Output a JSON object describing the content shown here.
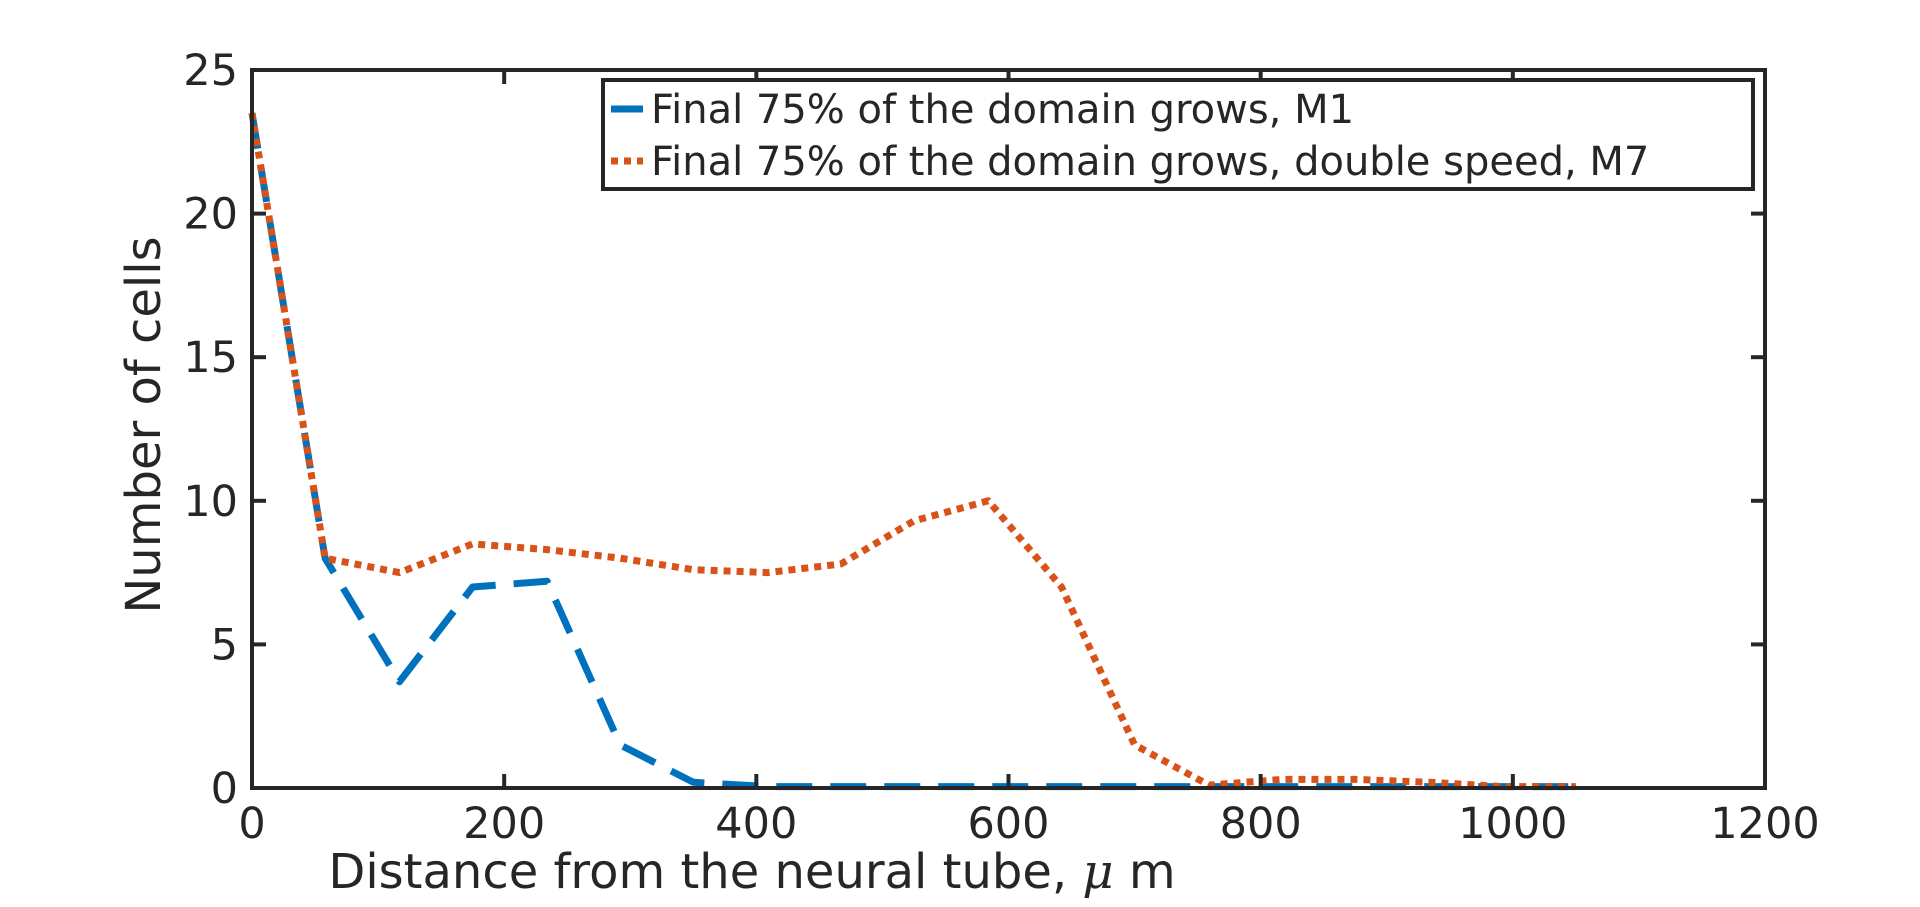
{
  "chart_data": {
    "type": "line",
    "title": "",
    "xlabel_prefix": "Distance from the neural tube, ",
    "xlabel_mu": "μ",
    "xlabel_suffix": " m",
    "ylabel": "Number of cells",
    "xlim": [
      0,
      1200
    ],
    "ylim": [
      0,
      25
    ],
    "xticks": [
      0,
      200,
      400,
      600,
      800,
      1000,
      1200
    ],
    "yticks": [
      0,
      5,
      10,
      15,
      20,
      25
    ],
    "grid": false,
    "legend_position": "top-right",
    "series": [
      {
        "name": "Final 75% of the domain grows, M1",
        "color": "#0072BD",
        "style": "dashed",
        "x": [
          0,
          58,
          117,
          175,
          234,
          292,
          350,
          409,
          467,
          525,
          584,
          642,
          700,
          759,
          817,
          876,
          934,
          992,
          1050
        ],
        "y": [
          23.5,
          8.0,
          3.7,
          7.0,
          7.2,
          1.5,
          0.2,
          0.05,
          0.05,
          0.05,
          0.05,
          0.05,
          0.05,
          0.05,
          0.05,
          0.05,
          0.05,
          0.05,
          0.05
        ]
      },
      {
        "name": "Final 75% of the domain grows, double speed, M7",
        "color": "#D95319",
        "style": "dotted",
        "x": [
          0,
          58,
          117,
          175,
          234,
          292,
          350,
          409,
          467,
          525,
          584,
          642,
          700,
          759,
          817,
          876,
          934,
          992,
          1050
        ],
        "y": [
          23.5,
          8.0,
          7.5,
          8.5,
          8.3,
          8.0,
          7.6,
          7.5,
          7.8,
          9.3,
          10.0,
          7.0,
          1.5,
          0.1,
          0.3,
          0.3,
          0.2,
          0.05,
          0.05
        ]
      }
    ]
  }
}
